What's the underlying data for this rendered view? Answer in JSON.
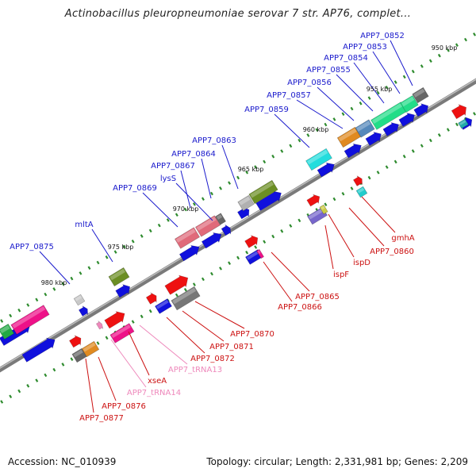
{
  "title": "Actinobacillus pleuropneumoniae serovar 7 str. AP76, complet...",
  "footer": {
    "accession": "Accession: NC_010939",
    "topology": "Topology: circular; Length: 2,331,981 bp; Genes: 2,209"
  },
  "colors": {
    "backbone": "#808080",
    "ruler_tick": "#2e8b2e",
    "label_upper": "#1a1acc",
    "label_lower": "#cc1111",
    "label_trna": "#ee88bb"
  },
  "kbp_labels": [
    "950 kbp",
    "955 kbp",
    "960 kbp",
    "965 kbp",
    "970 kbp",
    "975 kbp",
    "980 kbp"
  ],
  "upper_gene_labels": [
    "APP7_0852",
    "APP7_0853",
    "APP7_0854",
    "APP7_0855",
    "APP7_0856",
    "APP7_0857",
    "APP7_0859",
    "APP7_0863",
    "APP7_0864",
    "APP7_0867",
    "lysS",
    "APP7_0869",
    "mltA",
    "APP7_0875"
  ],
  "lower_gene_labels": [
    "gmhA",
    "APP7_0860",
    "ispD",
    "ispF",
    "APP7_0865",
    "APP7_0866",
    "APP7_0870",
    "APP7_0871",
    "APP7_0872",
    "APP7_tRNA13",
    "xseA",
    "APP7_tRNA14",
    "APP7_0876",
    "APP7_0877"
  ]
}
